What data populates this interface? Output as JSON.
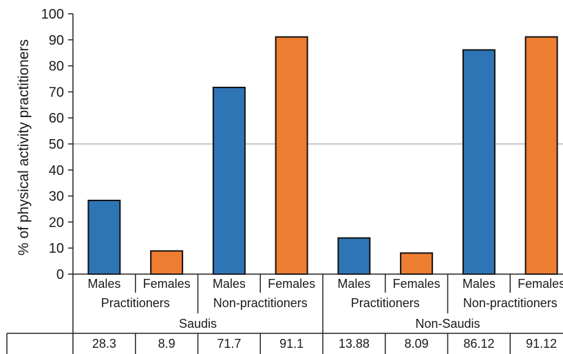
{
  "chart_data": {
    "type": "bar",
    "ylabel": "% of physical activity practitioners",
    "ylim": [
      0,
      100
    ],
    "yticks": [
      0,
      10,
      20,
      30,
      40,
      50,
      60,
      70,
      80,
      90,
      100
    ],
    "reference_line": 50,
    "categories": [
      "Males",
      "Females",
      "Males",
      "Females",
      "Males",
      "Females",
      "Males",
      "Females"
    ],
    "values": [
      28.3,
      8.9,
      71.7,
      91.1,
      13.88,
      8.09,
      86.12,
      91.12
    ],
    "value_labels": [
      "28.3",
      "8.9",
      "71.7",
      "91.1",
      "13.88",
      "8.09",
      "86.12",
      "91.12"
    ],
    "bar_colors": [
      "#2e75b6",
      "#ed7d31",
      "#2e75b6",
      "#ed7d31",
      "#2e75b6",
      "#ed7d31",
      "#2e75b6",
      "#ed7d31"
    ],
    "groups_level2": [
      "Practitioners",
      "Non-practitioners",
      "Practitioners",
      "Non-practitioners"
    ],
    "groups_level3": [
      "Saudis",
      "Non-Saudis"
    ],
    "grid": false
  }
}
